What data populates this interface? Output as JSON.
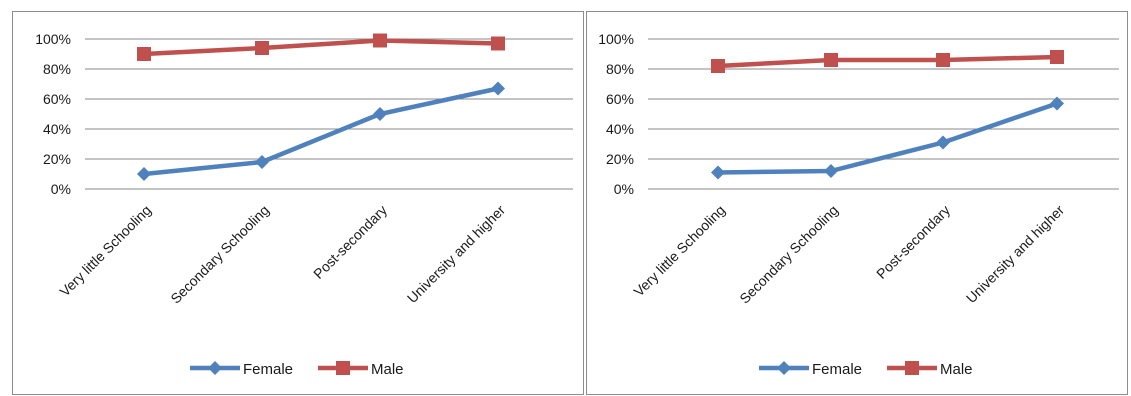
{
  "chart_data": [
    {
      "type": "line",
      "categories": [
        "Very little Schooling",
        "Secondary Schooling",
        "Post-secondary",
        "University and higher"
      ],
      "series": [
        {
          "name": "Female",
          "values": [
            10,
            18,
            50,
            67
          ],
          "color": "#4f81bd",
          "marker": "diamond"
        },
        {
          "name": "Male",
          "values": [
            90,
            94,
            99,
            97
          ],
          "color": "#c0504d",
          "marker": "square"
        }
      ],
      "yticks": [
        "0%",
        "20%",
        "40%",
        "60%",
        "80%",
        "100%"
      ],
      "ylim": [
        0,
        100
      ],
      "grid": true,
      "legend": "bottom"
    },
    {
      "type": "line",
      "categories": [
        "Very little Schooling",
        "Secondary Schooling",
        "Post-secondary",
        "University and higher"
      ],
      "series": [
        {
          "name": "Female",
          "values": [
            11,
            12,
            31,
            57
          ],
          "color": "#4f81bd",
          "marker": "diamond"
        },
        {
          "name": "Male",
          "values": [
            82,
            86,
            86,
            88
          ],
          "color": "#c0504d",
          "marker": "square"
        }
      ],
      "yticks": [
        "0%",
        "20%",
        "40%",
        "60%",
        "80%",
        "100%"
      ],
      "ylim": [
        0,
        100
      ],
      "grid": true,
      "legend": "bottom"
    }
  ]
}
